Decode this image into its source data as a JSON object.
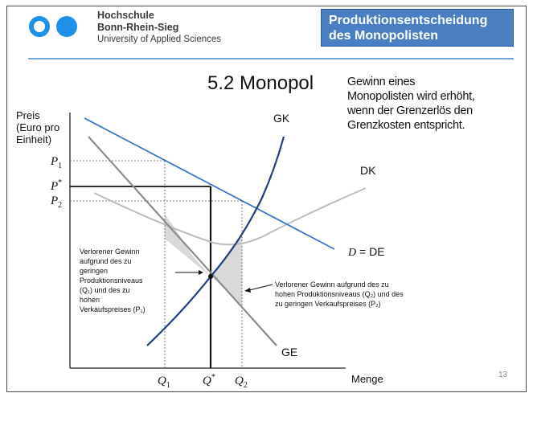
{
  "header": {
    "university_line1": "Hochschule",
    "university_line2": "Bonn-Rhein-Sieg",
    "university_line3": "University of Applied Sciences",
    "title_line1": "Produktionsentscheidung",
    "title_line2": "des Monopolisten",
    "logo_icon": "two-circles-logo-icon",
    "accent_color": "#4a7fc4",
    "logo_color": "#1e90e6"
  },
  "heading": "5.2 Monopol",
  "note_lines": [
    "Gewinn eines",
    "Monopolisten wird erhöht,",
    "wenn der Grenzerlös den",
    "Grenzkosten entspricht."
  ],
  "page_number": "13",
  "diagram": {
    "y_axis_label": [
      "Preis",
      "(Euro pro",
      "Einheit)"
    ],
    "x_axis_label": "Menge",
    "price_labels": {
      "p1": "P",
      "p1_sub": "1",
      "pstar": "P",
      "pstar_sup": "*",
      "p2": "P",
      "p2_sub": "2"
    },
    "quantity_labels": {
      "q1": "Q",
      "q1_sub": "1",
      "qstar": "Q",
      "qstar_sup": "*",
      "q2": "Q",
      "q2_sub": "2"
    },
    "curve_labels": {
      "gk": "GK",
      "dk": "DK",
      "d_italic": "D",
      "d_rest": " = DE",
      "ge": "GE"
    },
    "annotation_left": [
      "Verlorener Gewinn",
      "aufgrund des zu",
      "geringen",
      "Produktionsniveaus",
      "(Q₁) und des zu",
      "hohen",
      "Verkaufspreises (P₁)"
    ],
    "annotation_right": [
      "Verlorener Gewinn aufgrund des zu",
      "hohen Produktionsniveaus (Q₂) und des",
      "zu geringen Verkaufspreises (P₂)"
    ],
    "colors": {
      "demand": "#3a78c8",
      "marginal_cost": "#1f3f80",
      "average_cost": "#bdbdbd",
      "marginal_revenue": "#8c8c8c",
      "shade": "#d9d9d9"
    }
  }
}
